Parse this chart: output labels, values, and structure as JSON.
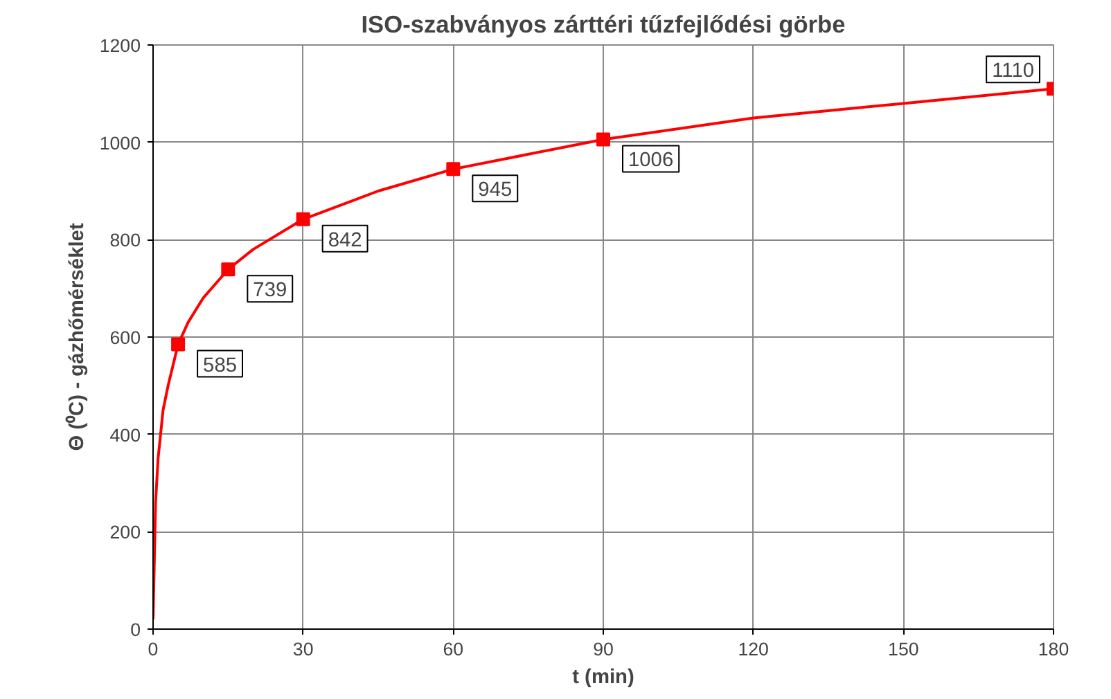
{
  "chart_data": {
    "type": "line",
    "title": "ISO-szabványos zárttéri tűzfejlődési görbe",
    "xlabel": "t (min)",
    "ylabel": "Θ (⁰C) - gázhőmérséklet",
    "xlim": [
      0,
      180
    ],
    "xticks": [
      0,
      30,
      60,
      90,
      120,
      150,
      180
    ],
    "ylim": [
      0,
      1200
    ],
    "yticks": [
      0,
      200,
      400,
      600,
      800,
      1000,
      1200
    ],
    "grid": true,
    "series": [
      {
        "color": "#ff0000",
        "marker": "none",
        "x": [
          0,
          0.5,
          1,
          2,
          3,
          5,
          7,
          10,
          15,
          20,
          30,
          45,
          60,
          90,
          120,
          150,
          180
        ],
        "values": [
          20,
          260,
          350,
          450,
          500,
          585,
          630,
          680,
          739,
          780,
          842,
          900,
          945,
          1006,
          1050,
          1080,
          1110
        ]
      },
      {
        "type": "scatter",
        "color": "#ff0000",
        "marker": "square",
        "data_labels": true,
        "x": [
          5,
          15,
          30,
          60,
          90,
          180
        ],
        "values": [
          585,
          739,
          842,
          945,
          1006,
          1110
        ]
      }
    ]
  }
}
